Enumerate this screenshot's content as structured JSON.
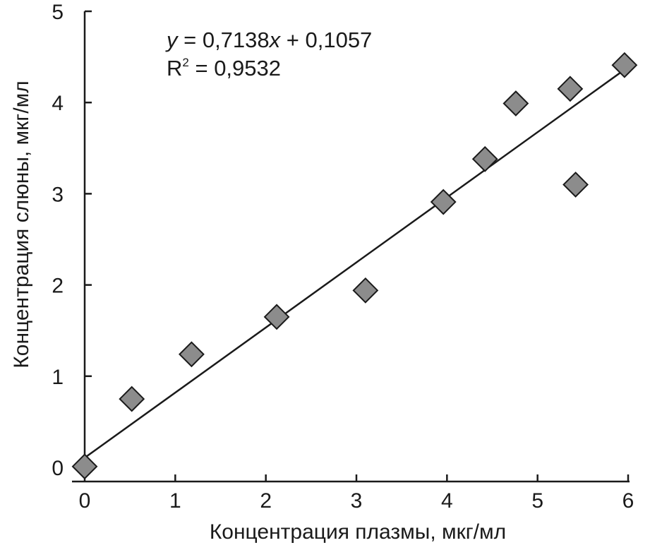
{
  "chart_data": {
    "type": "scatter",
    "xlabel": "Концентрация плазмы, мкг/мл",
    "ylabel": "Концентрация слюны, мкг/мл",
    "xlim": [
      0,
      6
    ],
    "ylim": [
      0,
      5
    ],
    "x_ticks": [
      "0",
      "1",
      "2",
      "3",
      "4",
      "5",
      "6"
    ],
    "y_ticks": [
      "0",
      "1",
      "2",
      "3",
      "4",
      "5"
    ],
    "grid": false,
    "marker": "diamond",
    "marker_color": "#8c8c8c",
    "line_color": "#1a1a1a",
    "points": [
      {
        "x": 0.0,
        "y": 0.01
      },
      {
        "x": 0.52,
        "y": 0.75
      },
      {
        "x": 1.18,
        "y": 1.24
      },
      {
        "x": 2.12,
        "y": 1.65
      },
      {
        "x": 3.1,
        "y": 1.94
      },
      {
        "x": 3.96,
        "y": 2.91
      },
      {
        "x": 4.42,
        "y": 3.38
      },
      {
        "x": 4.76,
        "y": 3.99
      },
      {
        "x": 5.36,
        "y": 4.15
      },
      {
        "x": 5.42,
        "y": 3.1
      },
      {
        "x": 5.96,
        "y": 4.41
      }
    ],
    "trendline": {
      "slope": 0.7138,
      "intercept": 0.1057,
      "x_range": [
        0,
        5.96
      ]
    },
    "annotation": {
      "eq_y": "y",
      "eq_rest": " = 0,7138",
      "eq_x": "x",
      "eq_tail": " + 0,1057",
      "r2_base": "R",
      "r2_sup": "2",
      "r2_value": " = 0,9532"
    }
  }
}
